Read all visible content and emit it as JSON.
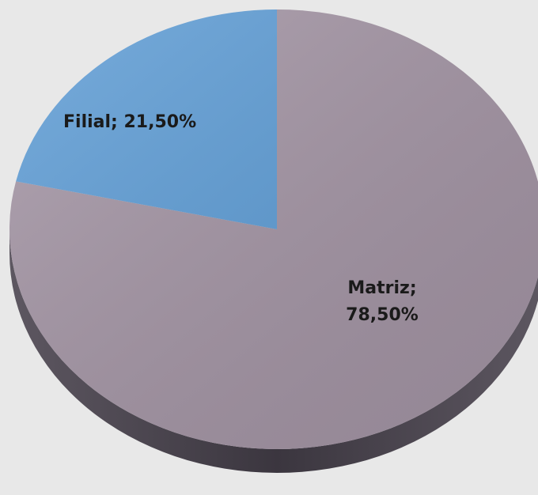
{
  "chart_data": {
    "type": "pie",
    "categories": [
      "Matriz",
      "Filial"
    ],
    "values": [
      78.5,
      21.5
    ],
    "value_labels": [
      "Matriz; 78,50%",
      "Filial; 21,50%"
    ],
    "colors": [
      "#a293a3",
      "#5b9bd5"
    ]
  }
}
